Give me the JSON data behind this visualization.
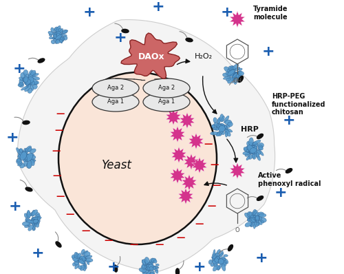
{
  "fig_width": 5.0,
  "fig_height": 3.98,
  "dpi": 100,
  "bg_color": "#ffffff",
  "yeast_fill": "#fae5d8",
  "yeast_edge": "#111111",
  "daox_fill": "#cc6666",
  "daox_edge": "#882222",
  "aga_fill": "#e8e8e8",
  "aga_edge": "#333333",
  "magenta": "#d4338c",
  "blue_protein": "#5599cc",
  "blue_protein_dark": "#2a5a8a",
  "blue_plus": "#1a5db0",
  "red_minus": "#cc0000",
  "arrow_color": "#111111",
  "text_color": "#111111",
  "sperm_color": "#111111",
  "label_tyramide": "Tyramide\nmolecule",
  "label_hrp_peg": "HRP-PEG\nfunctionalized\nchitosan",
  "label_hrp": "HRP",
  "label_active": "Active\nphenoxyl radical",
  "label_yeast": "Yeast",
  "label_h2o2": "H₂O₂",
  "label_daox": "DAOx",
  "label_aga1": "Aga 1",
  "label_aga2": "Aga 2"
}
